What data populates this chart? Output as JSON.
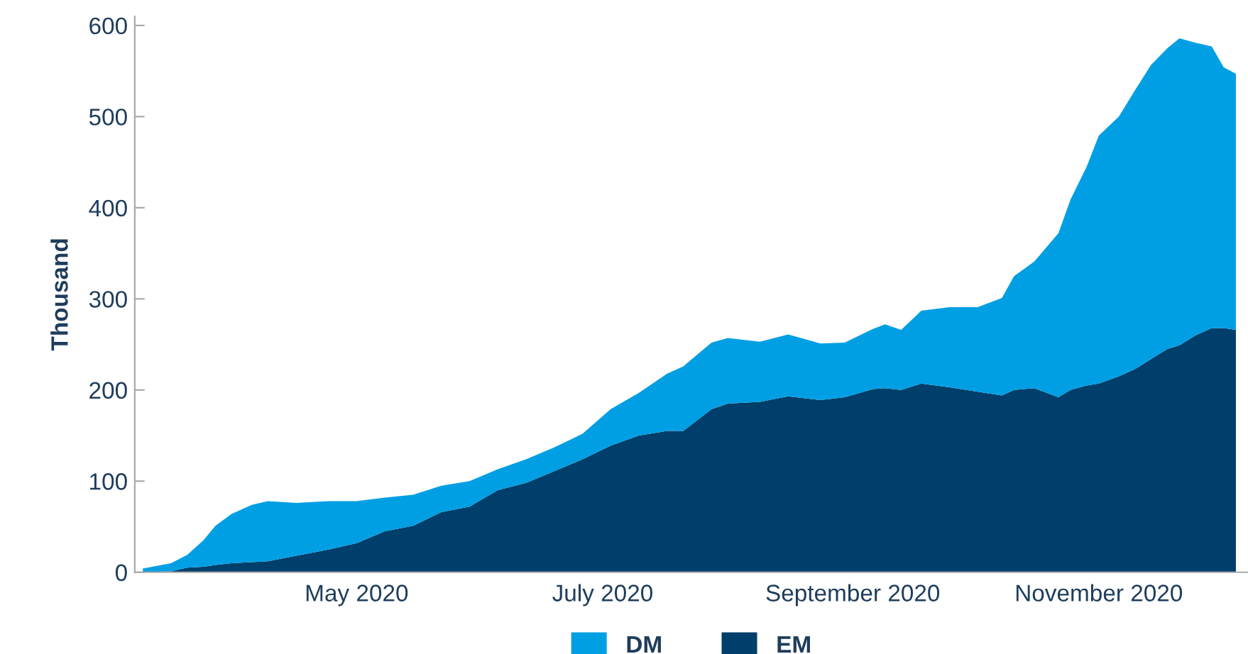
{
  "chart_data": {
    "type": "area",
    "stacked": true,
    "ylabel": "Thousand",
    "x": [
      "2020-03-09",
      "2020-03-16",
      "2020-03-20",
      "2020-03-24",
      "2020-03-27",
      "2020-03-31",
      "2020-04-05",
      "2020-04-09",
      "2020-04-16",
      "2020-04-24",
      "2020-05-01",
      "2020-05-08",
      "2020-05-15",
      "2020-05-22",
      "2020-05-29",
      "2020-06-05",
      "2020-06-12",
      "2020-06-19",
      "2020-06-26",
      "2020-07-03",
      "2020-07-10",
      "2020-07-17",
      "2020-07-21",
      "2020-07-28",
      "2020-08-01",
      "2020-08-09",
      "2020-08-16",
      "2020-08-24",
      "2020-08-30",
      "2020-09-06",
      "2020-09-09",
      "2020-09-13",
      "2020-09-18",
      "2020-09-25",
      "2020-10-02",
      "2020-10-08",
      "2020-10-11",
      "2020-10-16",
      "2020-10-22",
      "2020-10-25",
      "2020-10-29",
      "2020-11-01",
      "2020-11-06",
      "2020-11-10",
      "2020-11-14",
      "2020-11-18",
      "2020-11-21",
      "2020-11-25",
      "2020-11-29",
      "2020-12-02",
      "2020-12-05"
    ],
    "series": [
      {
        "name": "EM",
        "color": "#003f6b",
        "values": [
          0,
          1,
          5,
          6,
          8,
          10,
          11,
          12,
          18,
          25,
          32,
          45,
          51,
          66,
          72,
          90,
          98,
          111,
          124,
          139,
          150,
          155,
          155,
          179,
          185,
          187,
          193,
          189,
          192,
          201,
          202,
          200,
          207,
          203,
          198,
          194,
          200,
          202,
          192,
          200,
          205,
          207,
          215,
          223,
          234,
          245,
          249,
          260,
          268,
          268,
          266
        ]
      },
      {
        "name": "DM",
        "color": "#009fe3",
        "values": [
          4,
          9,
          14,
          29,
          43,
          54,
          63,
          66,
          58,
          53,
          46,
          37,
          34,
          29,
          28,
          23,
          26,
          26,
          28,
          40,
          47,
          63,
          71,
          73,
          72,
          66,
          68,
          62,
          60,
          66,
          70,
          66,
          80,
          88,
          93,
          107,
          125,
          139,
          180,
          209,
          240,
          272,
          285,
          306,
          323,
          330,
          337,
          321,
          309,
          286,
          281
        ]
      }
    ],
    "xlim": [
      "2020-03-07",
      "2020-12-08"
    ],
    "xticks": [
      {
        "value": "2020-05-01",
        "label": "May 2020"
      },
      {
        "value": "2020-07-01",
        "label": "July 2020"
      },
      {
        "value": "2020-09-01",
        "label": "September 2020"
      },
      {
        "value": "2020-11-01",
        "label": "November 2020"
      }
    ],
    "ylim": [
      0,
      610
    ],
    "yticks": [
      0,
      100,
      200,
      300,
      400,
      500,
      600
    ],
    "grid": false,
    "legend": "bottom"
  }
}
